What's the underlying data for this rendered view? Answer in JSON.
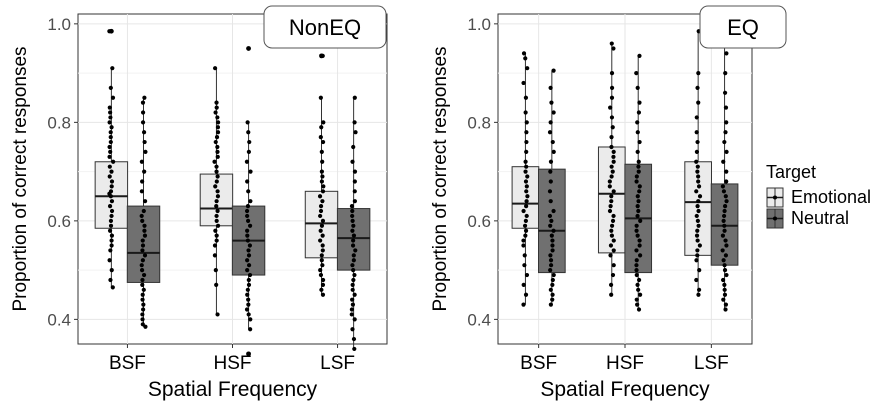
{
  "chart_data": [
    {
      "type": "box",
      "panel_label": "NonEQ",
      "xlabel": "Spatial Frequency",
      "ylabel": "Proportion of correct responses",
      "categories": [
        "BSF",
        "HSF",
        "LSF"
      ],
      "ylim": [
        0.35,
        1.02
      ],
      "yticks": [
        0.4,
        0.6,
        0.8,
        1.0
      ],
      "ytick_labels": [
        "0.4",
        "0.6",
        "0.8",
        "1.0"
      ],
      "grid": true,
      "series": [
        {
          "name": "Emotional",
          "boxes": [
            {
              "category": "BSF",
              "min": 0.465,
              "q1": 0.585,
              "median": 0.65,
              "q3": 0.72,
              "max": 0.91,
              "outliers": [
                0.985
              ],
              "points": [
                0.985,
                0.91,
                0.87,
                0.85,
                0.83,
                0.82,
                0.81,
                0.8,
                0.79,
                0.78,
                0.77,
                0.76,
                0.75,
                0.74,
                0.73,
                0.72,
                0.71,
                0.7,
                0.69,
                0.68,
                0.67,
                0.66,
                0.655,
                0.65,
                0.64,
                0.63,
                0.62,
                0.61,
                0.6,
                0.59,
                0.58,
                0.57,
                0.56,
                0.55,
                0.54,
                0.52,
                0.5,
                0.48,
                0.465
              ]
            },
            {
              "category": "HSF",
              "min": 0.41,
              "q1": 0.59,
              "median": 0.625,
              "q3": 0.695,
              "max": 0.91,
              "outliers": [],
              "points": [
                0.91,
                0.84,
                0.83,
                0.82,
                0.81,
                0.8,
                0.79,
                0.78,
                0.77,
                0.76,
                0.75,
                0.74,
                0.73,
                0.72,
                0.71,
                0.7,
                0.69,
                0.68,
                0.67,
                0.66,
                0.65,
                0.64,
                0.63,
                0.62,
                0.61,
                0.6,
                0.59,
                0.58,
                0.57,
                0.56,
                0.55,
                0.53,
                0.5,
                0.47,
                0.41
              ]
            },
            {
              "category": "LSF",
              "min": 0.45,
              "q1": 0.525,
              "median": 0.595,
              "q3": 0.66,
              "max": 0.85,
              "outliers": [
                0.935
              ],
              "points": [
                0.935,
                0.85,
                0.8,
                0.79,
                0.77,
                0.76,
                0.74,
                0.72,
                0.7,
                0.69,
                0.68,
                0.67,
                0.66,
                0.65,
                0.64,
                0.63,
                0.62,
                0.61,
                0.6,
                0.59,
                0.58,
                0.57,
                0.56,
                0.55,
                0.54,
                0.53,
                0.52,
                0.51,
                0.5,
                0.49,
                0.48,
                0.47,
                0.46,
                0.45
              ]
            }
          ]
        },
        {
          "name": "Neutral",
          "boxes": [
            {
              "category": "BSF",
              "min": 0.385,
              "q1": 0.475,
              "median": 0.535,
              "q3": 0.63,
              "max": 0.85,
              "outliers": [],
              "points": [
                0.85,
                0.84,
                0.82,
                0.8,
                0.78,
                0.76,
                0.74,
                0.72,
                0.7,
                0.68,
                0.66,
                0.64,
                0.62,
                0.61,
                0.6,
                0.59,
                0.58,
                0.57,
                0.56,
                0.55,
                0.54,
                0.53,
                0.52,
                0.51,
                0.5,
                0.49,
                0.48,
                0.47,
                0.46,
                0.45,
                0.44,
                0.43,
                0.42,
                0.41,
                0.4,
                0.39,
                0.385
              ]
            },
            {
              "category": "HSF",
              "min": 0.38,
              "q1": 0.49,
              "median": 0.56,
              "q3": 0.63,
              "max": 0.8,
              "outliers": [
                0.95,
                0.33
              ],
              "points": [
                0.95,
                0.8,
                0.78,
                0.76,
                0.74,
                0.72,
                0.7,
                0.68,
                0.66,
                0.64,
                0.63,
                0.62,
                0.61,
                0.6,
                0.59,
                0.58,
                0.57,
                0.56,
                0.55,
                0.54,
                0.53,
                0.52,
                0.51,
                0.5,
                0.49,
                0.48,
                0.47,
                0.46,
                0.45,
                0.44,
                0.43,
                0.42,
                0.41,
                0.4,
                0.38,
                0.33
              ]
            },
            {
              "category": "LSF",
              "min": 0.34,
              "q1": 0.5,
              "median": 0.565,
              "q3": 0.625,
              "max": 0.85,
              "outliers": [],
              "points": [
                0.85,
                0.8,
                0.78,
                0.75,
                0.72,
                0.7,
                0.68,
                0.66,
                0.64,
                0.63,
                0.62,
                0.61,
                0.6,
                0.59,
                0.58,
                0.57,
                0.56,
                0.55,
                0.54,
                0.53,
                0.52,
                0.51,
                0.5,
                0.49,
                0.48,
                0.47,
                0.46,
                0.45,
                0.44,
                0.43,
                0.42,
                0.41,
                0.4,
                0.38,
                0.36,
                0.34
              ]
            }
          ]
        }
      ]
    },
    {
      "type": "box",
      "panel_label": "EQ",
      "xlabel": "Spatial Frequency",
      "ylabel": "Proportion of correct responses",
      "categories": [
        "BSF",
        "HSF",
        "LSF"
      ],
      "ylim": [
        0.35,
        1.02
      ],
      "yticks": [
        0.4,
        0.6,
        0.8,
        1.0
      ],
      "ytick_labels": [
        "0.4",
        "0.6",
        "0.8",
        "1.0"
      ],
      "grid": true,
      "series": [
        {
          "name": "Emotional",
          "boxes": [
            {
              "category": "BSF",
              "min": 0.43,
              "q1": 0.585,
              "median": 0.635,
              "q3": 0.71,
              "max": 0.94,
              "outliers": [],
              "points": [
                0.94,
                0.93,
                0.91,
                0.88,
                0.85,
                0.82,
                0.8,
                0.78,
                0.76,
                0.74,
                0.72,
                0.71,
                0.7,
                0.69,
                0.68,
                0.67,
                0.66,
                0.65,
                0.64,
                0.63,
                0.62,
                0.61,
                0.6,
                0.59,
                0.58,
                0.57,
                0.56,
                0.55,
                0.53,
                0.51,
                0.49,
                0.47,
                0.45,
                0.43
              ]
            },
            {
              "category": "HSF",
              "min": 0.45,
              "q1": 0.535,
              "median": 0.655,
              "q3": 0.75,
              "max": 0.96,
              "outliers": [],
              "points": [
                0.96,
                0.95,
                0.9,
                0.87,
                0.85,
                0.83,
                0.81,
                0.79,
                0.77,
                0.75,
                0.74,
                0.73,
                0.72,
                0.71,
                0.7,
                0.69,
                0.68,
                0.67,
                0.66,
                0.65,
                0.64,
                0.63,
                0.62,
                0.61,
                0.6,
                0.59,
                0.58,
                0.57,
                0.56,
                0.55,
                0.54,
                0.53,
                0.51,
                0.49,
                0.47,
                0.45
              ]
            },
            {
              "category": "LSF",
              "min": 0.45,
              "q1": 0.53,
              "median": 0.638,
              "q3": 0.72,
              "max": 0.985,
              "outliers": [],
              "points": [
                0.985,
                0.9,
                0.87,
                0.84,
                0.81,
                0.78,
                0.76,
                0.74,
                0.72,
                0.71,
                0.7,
                0.69,
                0.68,
                0.67,
                0.66,
                0.65,
                0.64,
                0.63,
                0.62,
                0.61,
                0.6,
                0.59,
                0.58,
                0.57,
                0.56,
                0.55,
                0.54,
                0.53,
                0.52,
                0.5,
                0.48,
                0.46,
                0.45
              ]
            }
          ]
        },
        {
          "name": "Neutral",
          "boxes": [
            {
              "category": "BSF",
              "min": 0.43,
              "q1": 0.495,
              "median": 0.58,
              "q3": 0.705,
              "max": 0.905,
              "outliers": [],
              "points": [
                0.905,
                0.87,
                0.84,
                0.82,
                0.8,
                0.78,
                0.76,
                0.74,
                0.72,
                0.7,
                0.68,
                0.66,
                0.64,
                0.62,
                0.61,
                0.6,
                0.59,
                0.58,
                0.57,
                0.56,
                0.55,
                0.54,
                0.53,
                0.52,
                0.51,
                0.5,
                0.49,
                0.48,
                0.47,
                0.46,
                0.45,
                0.44,
                0.43
              ]
            },
            {
              "category": "HSF",
              "min": 0.42,
              "q1": 0.495,
              "median": 0.605,
              "q3": 0.715,
              "max": 0.935,
              "outliers": [],
              "points": [
                0.935,
                0.9,
                0.87,
                0.84,
                0.82,
                0.8,
                0.78,
                0.76,
                0.74,
                0.72,
                0.71,
                0.7,
                0.69,
                0.68,
                0.67,
                0.66,
                0.65,
                0.64,
                0.63,
                0.62,
                0.61,
                0.6,
                0.59,
                0.58,
                0.57,
                0.56,
                0.55,
                0.54,
                0.53,
                0.52,
                0.51,
                0.5,
                0.49,
                0.48,
                0.47,
                0.46,
                0.45,
                0.44,
                0.43,
                0.42
              ]
            },
            {
              "category": "LSF",
              "min": 0.42,
              "q1": 0.51,
              "median": 0.59,
              "q3": 0.675,
              "max": 0.96,
              "outliers": [],
              "points": [
                0.96,
                0.94,
                0.9,
                0.86,
                0.83,
                0.8,
                0.78,
                0.76,
                0.74,
                0.72,
                0.7,
                0.68,
                0.67,
                0.66,
                0.65,
                0.64,
                0.63,
                0.62,
                0.61,
                0.6,
                0.59,
                0.58,
                0.57,
                0.56,
                0.55,
                0.54,
                0.53,
                0.52,
                0.51,
                0.5,
                0.49,
                0.48,
                0.47,
                0.46,
                0.45,
                0.44,
                0.43,
                0.42
              ]
            }
          ]
        }
      ]
    }
  ],
  "legend": {
    "title": "Target",
    "entries": [
      {
        "label": "Emotional",
        "color": "#ebebeb"
      },
      {
        "label": "Neutral",
        "color": "#707070"
      }
    ],
    "placement": "right"
  },
  "colors": {
    "emotional_fill": "#ebebeb",
    "neutral_fill": "#707070",
    "point": "#000000",
    "grid": "#e6e6e6",
    "axis_text": "#4d4d4d"
  }
}
